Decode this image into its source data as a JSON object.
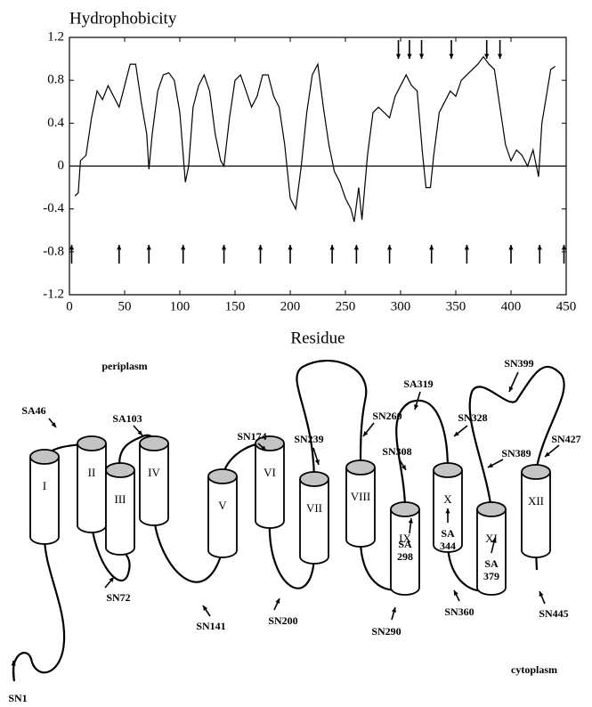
{
  "chart_data": {
    "type": "line",
    "ylabel": "Hydrophobicity",
    "xlabel": "Residue",
    "x": [
      5,
      8,
      10,
      15,
      20,
      25,
      30,
      35,
      40,
      45,
      50,
      55,
      60,
      65,
      70,
      72,
      75,
      80,
      85,
      90,
      95,
      100,
      105,
      108,
      112,
      117,
      122,
      127,
      132,
      137,
      140,
      145,
      150,
      155,
      160,
      165,
      170,
      175,
      180,
      185,
      190,
      195,
      200,
      205,
      210,
      215,
      220,
      225,
      230,
      235,
      240,
      245,
      250,
      255,
      258,
      262,
      265,
      270,
      275,
      280,
      285,
      290,
      295,
      300,
      305,
      310,
      315,
      320,
      323,
      327,
      330,
      335,
      340,
      345,
      350,
      355,
      360,
      365,
      370,
      375,
      380,
      385,
      390,
      395,
      400,
      405,
      410,
      415,
      420,
      425,
      428,
      432,
      436,
      440
    ],
    "series": [
      {
        "color": "#000000",
        "values": [
          -0.28,
          -0.25,
          0.05,
          0.1,
          0.45,
          0.7,
          0.62,
          0.75,
          0.65,
          0.55,
          0.75,
          0.95,
          0.95,
          0.6,
          0.3,
          -0.03,
          0.3,
          0.7,
          0.85,
          0.87,
          0.8,
          0.5,
          -0.15,
          0.0,
          0.55,
          0.75,
          0.85,
          0.7,
          0.3,
          0.05,
          0.0,
          0.45,
          0.8,
          0.85,
          0.7,
          0.55,
          0.65,
          0.85,
          0.85,
          0.65,
          0.55,
          0.2,
          -0.3,
          -0.4,
          0.0,
          0.5,
          0.85,
          0.95,
          0.55,
          0.2,
          -0.05,
          -0.15,
          -0.3,
          -0.4,
          -0.52,
          -0.2,
          -0.5,
          0.1,
          0.5,
          0.55,
          0.5,
          0.45,
          0.65,
          0.75,
          0.85,
          0.75,
          0.7,
          0.1,
          -0.2,
          -0.2,
          0.1,
          0.5,
          0.6,
          0.7,
          0.65,
          0.8,
          0.85,
          0.9,
          0.95,
          1.02,
          0.95,
          0.9,
          0.55,
          0.2,
          0.05,
          0.15,
          0.1,
          0.0,
          0.15,
          -0.1,
          0.4,
          0.65,
          0.9,
          0.93
        ]
      }
    ],
    "xlim": [
      0,
      450
    ],
    "xticks": [
      0,
      50,
      100,
      150,
      200,
      250,
      300,
      350,
      400,
      450
    ],
    "ylim": [
      -1.2,
      1.2
    ],
    "yticks": [
      -1.2,
      -0.8,
      -0.4,
      0,
      0.4,
      0.8,
      1.2
    ],
    "zero_line": true,
    "arrows_up": [
      2,
      45,
      72,
      103,
      140,
      173,
      200,
      238,
      260,
      290,
      328,
      360,
      400,
      426,
      448
    ],
    "arrows_down": [
      298,
      308,
      319,
      346,
      378,
      390
    ]
  },
  "diagram": {
    "regions": [
      "periplasm",
      "cytoplasm"
    ],
    "helices": [
      "I",
      "II",
      "III",
      "IV",
      "V",
      "VI",
      "VII",
      "VIII",
      "IX",
      "X",
      "XI",
      "XII"
    ],
    "sites": [
      "SN1",
      "SA46",
      "SA103",
      "SN72",
      "SN174",
      "SN141",
      "SN239",
      "SN200",
      "SN260",
      "SA319",
      "SN328",
      "SN308",
      "SN399",
      "SN389",
      "SN427",
      "SN290",
      "SN360",
      "SN445"
    ],
    "inner_sites": [
      [
        "SA",
        "298"
      ],
      [
        "SA",
        "344"
      ],
      [
        "SA",
        "379"
      ]
    ]
  }
}
